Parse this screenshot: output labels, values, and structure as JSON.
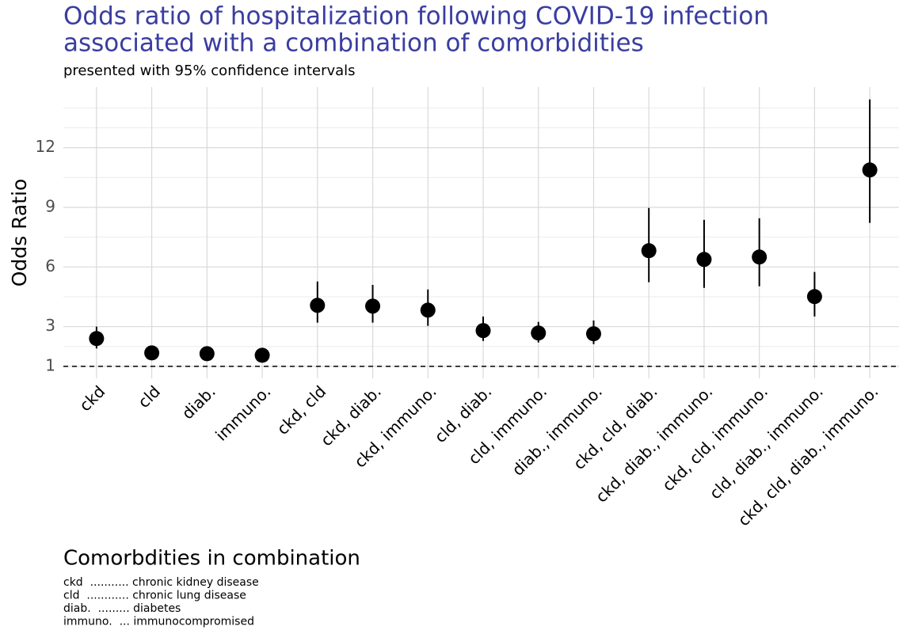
{
  "chart_data": {
    "type": "errorbar",
    "title": [
      "Odds ratio of hospitalization following COVID-19 infection",
      "associated with a combination of comorbidities"
    ],
    "subtitle": "presented with 95% confidence intervals",
    "y_label": "Odds Ratio",
    "categories": [
      "ckd",
      "cld",
      "diab.",
      "immuno.",
      "ckd, cld",
      "ckd, diab.",
      "ckd, immuno.",
      "cld, diab.",
      "cld, immuno.",
      "diab., immuno.",
      "ckd, cld, diab.",
      "ckd, diab., immuno.",
      "ckd, cld, immuno.",
      "cld, diab., immuno.",
      "ckd, cld, diab., immuno."
    ],
    "values": [
      2.4,
      1.68,
      1.64,
      1.56,
      4.07,
      4.03,
      3.83,
      2.8,
      2.68,
      2.64,
      6.82,
      6.38,
      6.5,
      4.51,
      10.88
    ],
    "lower": [
      1.9,
      1.55,
      1.5,
      1.4,
      3.2,
      3.2,
      3.04,
      2.28,
      2.2,
      2.12,
      5.23,
      4.95,
      5.03,
      3.51,
      8.22
    ],
    "upper": [
      3.0,
      1.85,
      1.8,
      1.75,
      5.27,
      5.1,
      4.87,
      3.51,
      3.24,
      3.31,
      8.97,
      8.37,
      8.45,
      5.75,
      14.43
    ],
    "color": "#000000",
    "ylim": [
      0.4,
      15.05
    ],
    "yticks": [
      1,
      3,
      6,
      9,
      12
    ],
    "minor_grid": [
      2,
      4.5,
      7.5,
      10.5,
      13,
      14
    ],
    "reference_line": 1,
    "grid": true,
    "caption_title": "Comorbdities in combination",
    "caption_lines": [
      "ckd  ........... chronic kidney disease",
      "cld  ............ chronic lung disease",
      "diab.  ......... diabetes",
      "immuno.  ... immunocompromised"
    ]
  }
}
